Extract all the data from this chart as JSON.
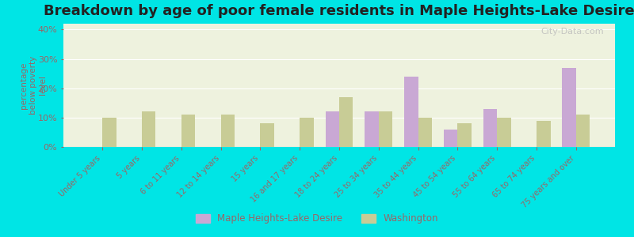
{
  "title": "Breakdown by age of poor female residents in Maple Heights-Lake Desire",
  "ylabel": "percentage\nbelow poverty\nlevel",
  "categories": [
    "Under 5 years",
    "5 years",
    "6 to 11 years",
    "12 to 14 years",
    "15 years",
    "16 and 17 years",
    "18 to 24 years",
    "25 to 34 years",
    "35 to 44 years",
    "45 to 54 years",
    "55 to 64 years",
    "65 to 74 years",
    "75 years and over"
  ],
  "maple_values": [
    0,
    0,
    0,
    0,
    0,
    0,
    12,
    12,
    24,
    6,
    13,
    0,
    27
  ],
  "washington_values": [
    10,
    12,
    11,
    11,
    8,
    10,
    17,
    12,
    10,
    8,
    10,
    9,
    11
  ],
  "maple_color": "#c9a8d4",
  "washington_color": "#c8cc96",
  "plot_bg": "#eef2de",
  "ylim": [
    0,
    42
  ],
  "yticks": [
    0,
    10,
    20,
    30,
    40
  ],
  "ytick_labels": [
    "0%",
    "10%",
    "20%",
    "30%",
    "40%"
  ],
  "bar_width": 0.35,
  "legend_labels": [
    "Maple Heights-Lake Desire",
    "Washington"
  ],
  "title_fontsize": 13,
  "axis_color": "#996666",
  "tick_color": "#996666",
  "watermark": "City-Data.com",
  "outer_bg": "#00e5e5"
}
